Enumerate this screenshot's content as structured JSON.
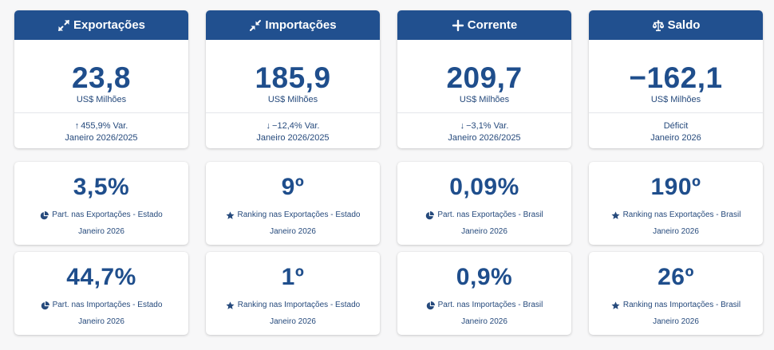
{
  "columns": [
    {
      "header": {
        "icon": "expand-arrows-icon",
        "label": "Exportações"
      },
      "main": {
        "value": "23,8",
        "unit": "US$ Milhões"
      },
      "sub": {
        "arrow": "↑",
        "arrow_icon": "arrow-up-icon",
        "text": "455,9% Var.",
        "period": "Janeiro 2026/2025"
      },
      "stats": [
        {
          "value": "3,5%",
          "icon": "pie-chart-icon",
          "label": "Part. nas Exportações - Estado",
          "period": "Janeiro 2026"
        },
        {
          "value": "44,7%",
          "icon": "pie-chart-icon",
          "label": "Part. nas Importações - Estado",
          "period": "Janeiro 2026"
        }
      ]
    },
    {
      "header": {
        "icon": "compress-arrows-icon",
        "label": "Importações"
      },
      "main": {
        "value": "185,9",
        "unit": "US$ Milhões"
      },
      "sub": {
        "arrow": "↓",
        "arrow_icon": "arrow-down-icon",
        "text": "−12,4% Var.",
        "period": "Janeiro 2026/2025"
      },
      "stats": [
        {
          "value": "9º",
          "icon": "star-icon",
          "label": "Ranking nas Exportações - Estado",
          "period": "Janeiro 2026"
        },
        {
          "value": "1º",
          "icon": "star-icon",
          "label": "Ranking nas Importações - Estado",
          "period": "Janeiro 2026"
        }
      ]
    },
    {
      "header": {
        "icon": "plus-icon",
        "label": "Corrente"
      },
      "main": {
        "value": "209,7",
        "unit": "US$ Milhões"
      },
      "sub": {
        "arrow": "↓",
        "arrow_icon": "arrow-down-icon",
        "text": "−3,1% Var.",
        "period": "Janeiro 2026/2025"
      },
      "stats": [
        {
          "value": "0,09%",
          "icon": "pie-chart-icon",
          "label": "Part. nas Exportações - Brasil",
          "period": "Janeiro 2026"
        },
        {
          "value": "0,9%",
          "icon": "pie-chart-icon",
          "label": "Part. nas Importações - Brasil",
          "period": "Janeiro 2026"
        }
      ]
    },
    {
      "header": {
        "icon": "balance-scale-icon",
        "label": "Saldo"
      },
      "main": {
        "value": "−162,1",
        "unit": "US$ Milhões"
      },
      "sub": {
        "arrow": "",
        "arrow_icon": "",
        "text": "Déficit",
        "period": "Janeiro 2026"
      },
      "stats": [
        {
          "value": "190º",
          "icon": "star-icon",
          "label": "Ranking nas Exportações - Brasil",
          "period": "Janeiro 2026"
        },
        {
          "value": "26º",
          "icon": "star-icon",
          "label": "Ranking nas Importações - Brasil",
          "period": "Janeiro 2026"
        }
      ]
    }
  ],
  "colors": {
    "header_bg": "#21508f",
    "value_text": "#1f4e8c",
    "card_bg": "#ffffff",
    "page_bg": "#f7f7f8"
  }
}
